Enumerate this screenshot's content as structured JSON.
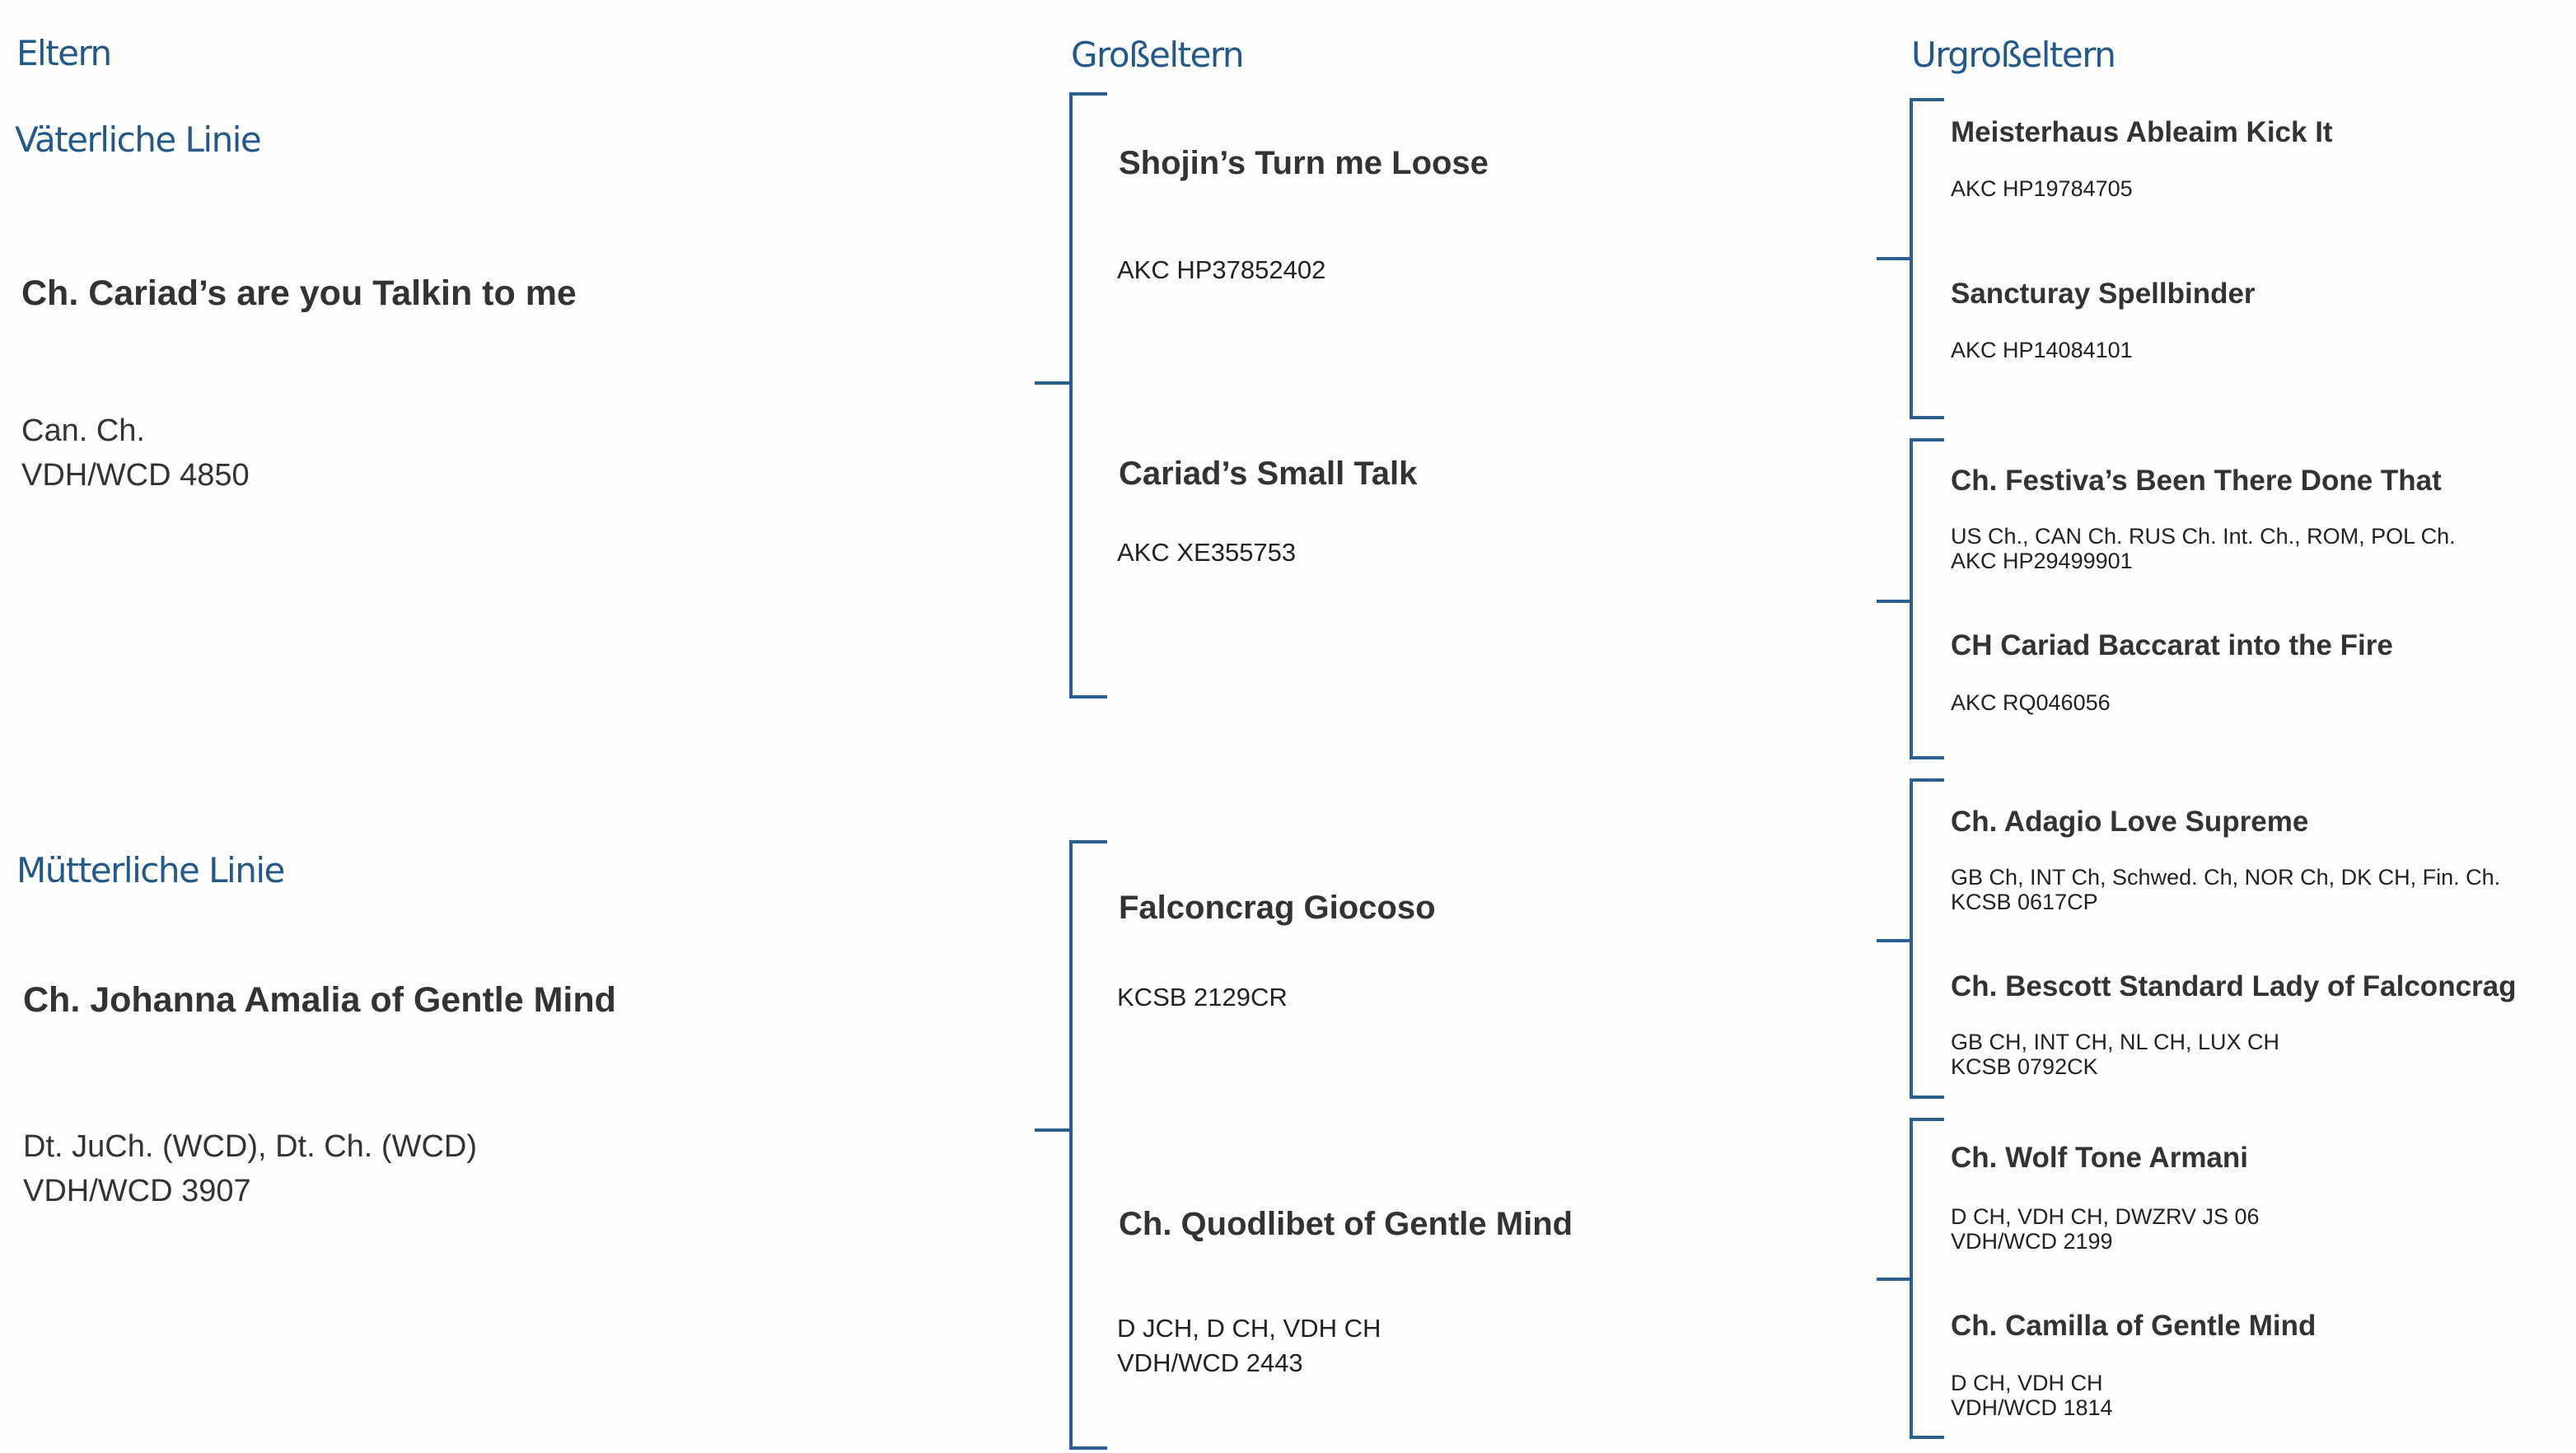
{
  "headers": {
    "parents": "Eltern",
    "grandparents": "Großeltern",
    "great_grandparents": "Urgroßeltern"
  },
  "paternal": {
    "label": "Väterliche Linie",
    "parent": {
      "name": "Ch. Cariad’s are you Talkin to me",
      "details": [
        "Can. Ch.",
        "VDH/WCD 4850"
      ]
    },
    "grandparents": [
      {
        "name": "Shojin’s Turn me Loose",
        "details": [
          "AKC HP37852402"
        ]
      },
      {
        "name": "Cariad’s Small Talk",
        "details": [
          "AKC XE355753"
        ]
      }
    ],
    "great_grandparents": [
      {
        "name": "Meisterhaus Ableaim Kick It",
        "details": [
          "AKC HP19784705"
        ]
      },
      {
        "name": "Sancturay Spellbinder",
        "details": [
          "AKC HP14084101"
        ]
      },
      {
        "name": "Ch. Festiva’s Been There Done That",
        "details": [
          "US Ch., CAN Ch. RUS Ch. Int. Ch., ROM, POL Ch.",
          "AKC HP29499901"
        ]
      },
      {
        "name": "CH Cariad Baccarat into the Fire",
        "details": [
          "AKC RQ046056"
        ]
      }
    ]
  },
  "maternal": {
    "label": "Mütterliche Linie",
    "parent": {
      "name": "Ch. Johanna Amalia of Gentle Mind",
      "details": [
        "Dt. JuCh. (WCD), Dt. Ch. (WCD)",
        "VDH/WCD 3907"
      ]
    },
    "grandparents": [
      {
        "name": "Falconcrag Giocoso",
        "details": [
          "KCSB 2129CR"
        ]
      },
      {
        "name": "Ch. Quodlibet of Gentle Mind",
        "details": [
          "D JCH, D CH, VDH CH",
          "VDH/WCD 2443"
        ]
      }
    ],
    "great_grandparents": [
      {
        "name": "Ch. Adagio Love Supreme",
        "details": [
          "GB Ch, INT Ch, Schwed. Ch, NOR Ch, DK CH, Fin. Ch.",
          "KCSB 0617CP"
        ]
      },
      {
        "name": "Ch. Bescott Standard Lady of Falconcrag",
        "details": [
          "GB CH, INT CH, NL CH, LUX CH",
          "KCSB 0792CK"
        ]
      },
      {
        "name": "Ch. Wolf Tone Armani",
        "details": [
          "D CH, VDH CH, DWZRV JS 06",
          "VDH/WCD 2199"
        ]
      },
      {
        "name": "Ch. Camilla of Gentle Mind",
        "details": [
          "D CH, VDH CH",
          "VDH/WCD 1814"
        ]
      }
    ]
  },
  "colors": {
    "heading": "#22598a",
    "bracket": "#2a5f8f",
    "text": "#333333"
  }
}
